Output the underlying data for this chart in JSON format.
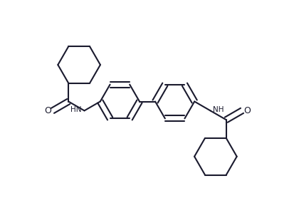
{
  "bg_color": "#ffffff",
  "line_color": "#1a1a2e",
  "lw": 1.5,
  "dbo": 0.013,
  "figsize": [
    4.14,
    2.85
  ],
  "dpi": 100,
  "rb": 0.088,
  "rc": 0.095,
  "xlim": [
    0.0,
    1.0
  ],
  "ylim": [
    0.05,
    0.95
  ]
}
